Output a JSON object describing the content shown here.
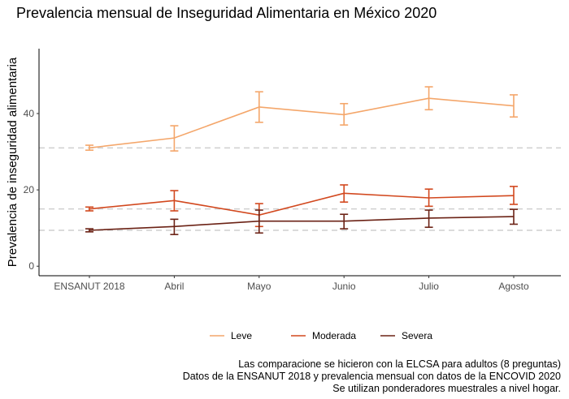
{
  "chart_data": {
    "type": "line",
    "title": "Prevalencia mensual de Inseguridad Alimentaria en México 2020",
    "xlabel": "",
    "ylabel": "Prevalencia de inseguridad alimentaria",
    "categories": [
      "ENSANUT 2018",
      "Abril",
      "Mayo",
      "Junio",
      "Julio",
      "Agosto"
    ],
    "ylim": [
      -2.5,
      57
    ],
    "yticks": [
      0,
      20,
      40
    ],
    "grid": false,
    "legend_position": "bottom",
    "reference_lines": [
      31.0,
      15.0,
      9.4
    ],
    "series": [
      {
        "name": "Leve",
        "color": "#F4A66A",
        "values": [
          31.0,
          33.6,
          41.7,
          39.7,
          44.0,
          42.0
        ],
        "lower": [
          30.4,
          30.2,
          37.7,
          37.0,
          41.0,
          39.1
        ],
        "upper": [
          31.7,
          36.8,
          45.7,
          42.6,
          47.0,
          44.9
        ]
      },
      {
        "name": "Moderada",
        "color": "#D2481E",
        "values": [
          15.0,
          17.2,
          13.4,
          19.1,
          17.9,
          18.5
        ],
        "lower": [
          14.5,
          14.5,
          10.4,
          16.8,
          15.7,
          16.2
        ],
        "upper": [
          15.5,
          19.8,
          16.4,
          21.3,
          20.2,
          20.9
        ]
      },
      {
        "name": "Severa",
        "color": "#6B2215",
        "values": [
          9.4,
          10.4,
          11.8,
          11.8,
          12.6,
          13.0
        ],
        "lower": [
          9.0,
          8.3,
          8.7,
          9.8,
          10.2,
          11.0
        ],
        "upper": [
          9.8,
          12.3,
          14.7,
          13.6,
          14.7,
          14.9
        ]
      }
    ]
  },
  "caption": [
    "Las comparacione se hicieron con la ELCSA para adultos (8 preguntas)",
    "Datos de la ENSANUT 2018 y prevalencia mensual con datos de la ENCOVID 2020",
    "Se utilizan ponderadores muestrales a nivel hogar."
  ]
}
